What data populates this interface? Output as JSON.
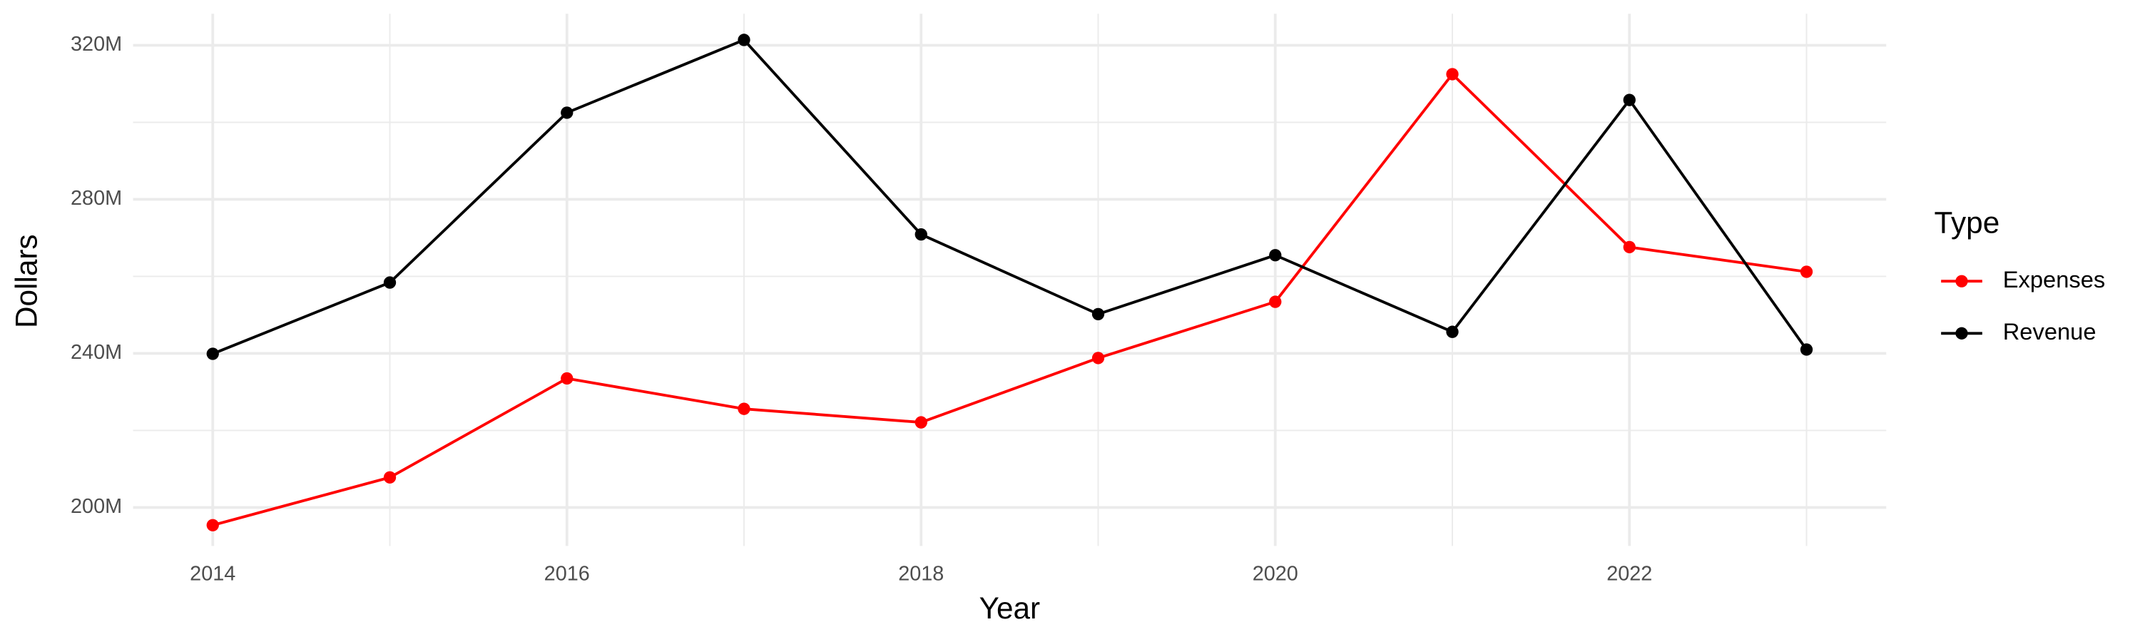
{
  "chart_data": {
    "type": "line",
    "x_label": "Year",
    "y_label": "Dollars",
    "legend_title": "Type",
    "legend_position": "right",
    "grid": true,
    "x": [
      2014,
      2015,
      2016,
      2017,
      2018,
      2019,
      2020,
      2021,
      2022,
      2023
    ],
    "series": [
      {
        "name": "Expenses",
        "color": "#ff0000",
        "values": [
          195.4,
          207.8,
          233.5,
          225.6,
          222.1,
          238.8,
          253.4,
          312.5,
          267.6,
          261.2
        ]
      },
      {
        "name": "Revenue",
        "color": "#000000",
        "values": [
          239.9,
          258.4,
          302.5,
          321.4,
          270.9,
          250.2,
          265.5,
          245.6,
          305.8,
          241.0
        ]
      }
    ],
    "xlim": [
      2013.55,
      2023.45
    ],
    "xticks": [
      2014,
      2016,
      2018,
      2020,
      2022
    ],
    "x_minor_ticks": [
      2015,
      2017,
      2019,
      2021,
      2023
    ],
    "ylim": [
      190,
      328.2
    ],
    "yticks": [
      {
        "value": 200,
        "label": "200M"
      },
      {
        "value": 240,
        "label": "240M"
      },
      {
        "value": 280,
        "label": "280M"
      },
      {
        "value": 320,
        "label": "320M"
      }
    ],
    "y_minor_ticks": [
      220,
      260,
      300
    ]
  }
}
